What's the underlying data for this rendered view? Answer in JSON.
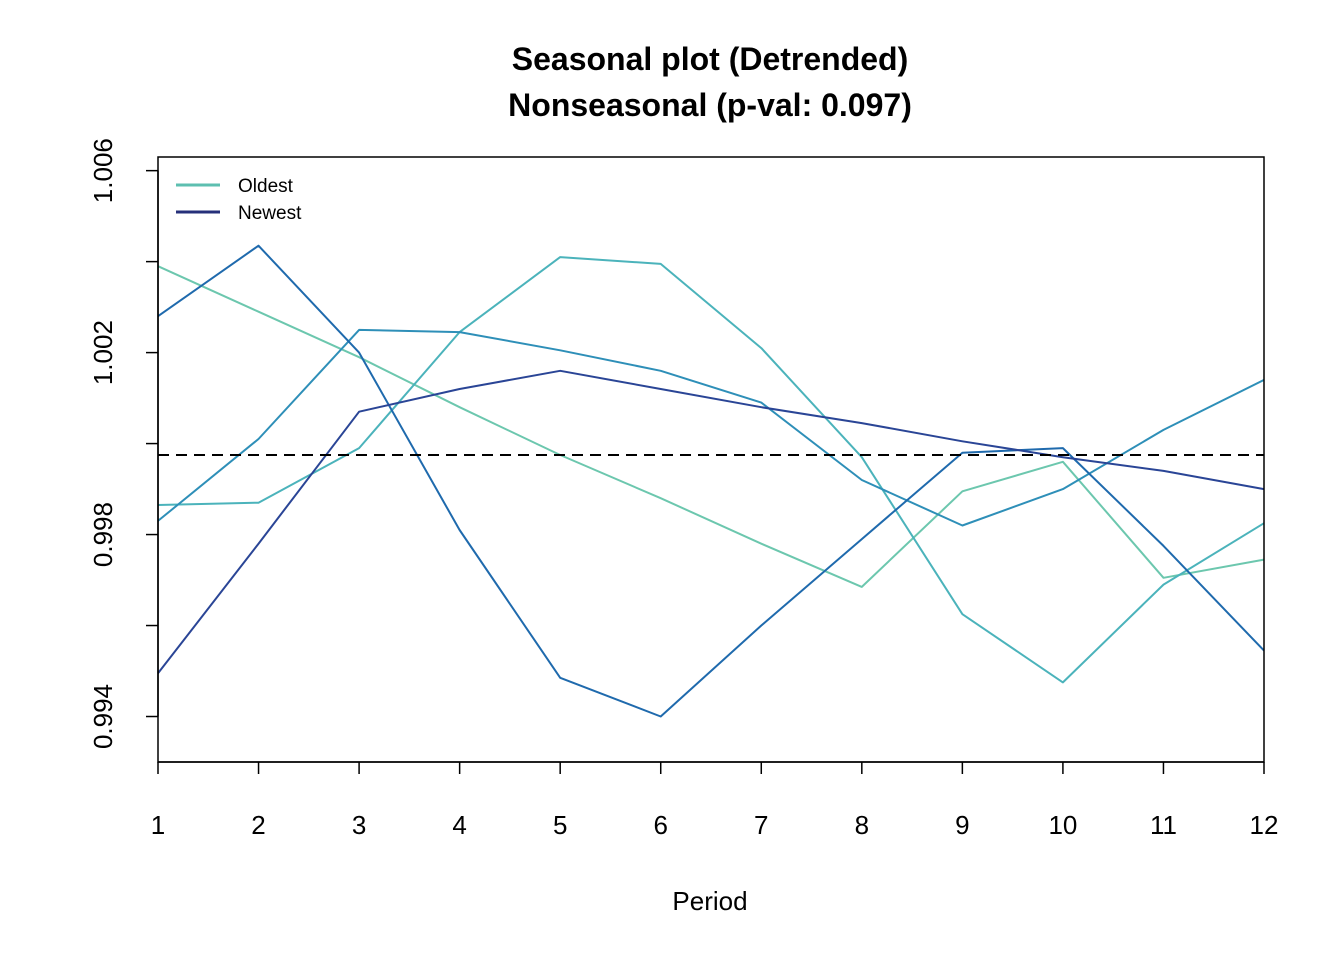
{
  "chart_data": {
    "type": "line",
    "title": "Seasonal plot (Detrended)",
    "subtitle": "Nonseasonal (p-val: 0.097)",
    "xlabel": "Period",
    "ylabel": "",
    "x": [
      1,
      2,
      3,
      4,
      5,
      6,
      7,
      8,
      9,
      10,
      11,
      12
    ],
    "xlim": [
      1,
      12
    ],
    "ylim": [
      0.993,
      1.0063
    ],
    "xticks": [
      "1",
      "2",
      "3",
      "4",
      "5",
      "6",
      "7",
      "8",
      "9",
      "10",
      "11",
      "12"
    ],
    "yticks_labeled": [
      "0.994",
      "0.998",
      "1.002",
      "1.006"
    ],
    "yticks_labeled_values": [
      0.994,
      0.998,
      1.002,
      1.006
    ],
    "yticks_minor_values": [
      0.996,
      1.0,
      1.004
    ],
    "reference_line": {
      "value": 0.99975,
      "style": "dashed",
      "color": "#000000"
    },
    "grid": false,
    "legend": {
      "position": "top-left",
      "entries": [
        {
          "label": "Oldest",
          "color": "#5dbfb0"
        },
        {
          "label": "Newest",
          "color": "#26307a"
        }
      ]
    },
    "series": [
      {
        "color": "#6cc7ae",
        "values": [
          1.0039,
          1.0029,
          1.0019,
          1.0008,
          0.99975,
          0.9988,
          0.9978,
          0.99685,
          0.99895,
          0.9996,
          0.99705,
          0.99745
        ]
      },
      {
        "color": "#4bb3bb",
        "values": [
          0.99865,
          0.9987,
          0.9999,
          1.00245,
          1.0041,
          1.00395,
          1.0021,
          0.9997,
          0.99625,
          0.99475,
          0.9969,
          0.99825
        ]
      },
      {
        "color": "#2e8fb8",
        "values": [
          0.9983,
          1.0001,
          1.0025,
          1.00245,
          1.00205,
          1.0016,
          1.0009,
          0.9992,
          0.9982,
          0.999,
          1.0003,
          1.0014
        ]
      },
      {
        "color": "#1f6aad",
        "values": [
          1.0028,
          1.00435,
          1.002,
          0.9981,
          0.99485,
          0.994,
          0.996,
          0.9979,
          0.9998,
          0.9999,
          0.99775,
          0.99545
        ]
      },
      {
        "color": "#2a4596",
        "values": [
          0.99495,
          0.9978,
          1.0007,
          1.0012,
          1.0016,
          1.0012,
          1.0008,
          1.00045,
          1.00005,
          0.9997,
          0.9994,
          0.999
        ]
      }
    ]
  }
}
